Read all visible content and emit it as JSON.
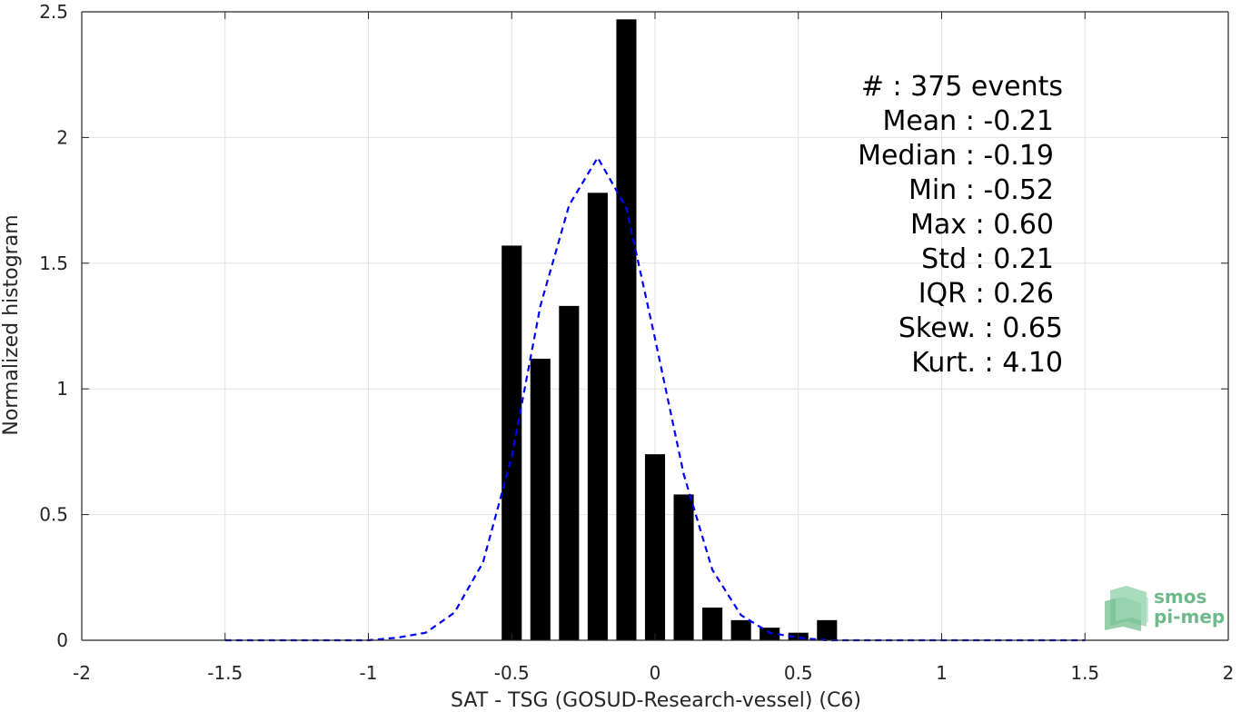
{
  "chart_data": {
    "type": "bar",
    "xlabel": "SAT - TSG (GOSUD-Research-vessel) (C6)",
    "ylabel": "Normalized histogram",
    "xlim": [
      -2,
      2
    ],
    "ylim": [
      0,
      2.5
    ],
    "xticks": [
      -2,
      -1.5,
      -1,
      -0.5,
      0,
      0.5,
      1,
      1.5,
      2
    ],
    "yticks": [
      0,
      0.5,
      1,
      1.5,
      2,
      2.5
    ],
    "xtick_labels": [
      "-2",
      "-1.5",
      "-1",
      "-0.5",
      "0",
      "0.5",
      "1",
      "1.5",
      "2"
    ],
    "ytick_labels": [
      "0",
      "0.5",
      "1",
      "1.5",
      "2",
      "2.5"
    ],
    "grid": true,
    "bar_color": "#000000",
    "bars": {
      "x": [
        -0.5,
        -0.4,
        -0.3,
        -0.2,
        -0.1,
        0.0,
        0.1,
        0.2,
        0.3,
        0.4,
        0.5,
        0.6
      ],
      "values": [
        1.57,
        1.12,
        1.33,
        1.78,
        2.47,
        0.74,
        0.58,
        0.13,
        0.08,
        0.05,
        0.03,
        0.08
      ]
    },
    "fit_curve": {
      "style": "dashed",
      "color": "#0000ff",
      "x": [
        -1.5,
        -1.4,
        -1.3,
        -1.2,
        -1.1,
        -1.0,
        -0.9,
        -0.8,
        -0.7,
        -0.6,
        -0.5,
        -0.4,
        -0.3,
        -0.2,
        -0.1,
        0.0,
        0.1,
        0.2,
        0.3,
        0.4,
        0.5,
        0.6,
        0.7,
        0.8,
        0.9,
        1.0,
        1.1,
        1.2,
        1.3,
        1.4,
        1.5
      ],
      "y": [
        0,
        0,
        0,
        0,
        0,
        0,
        0.01,
        0.03,
        0.11,
        0.31,
        0.73,
        1.33,
        1.73,
        1.92,
        1.72,
        1.2,
        0.66,
        0.28,
        0.1,
        0.03,
        0.01,
        0,
        0,
        0,
        0,
        0,
        0,
        0,
        0,
        0,
        0
      ]
    },
    "annotation": {
      "lines": [
        "#  : 375 events",
        "Mean : -0.21",
        "Median : -0.19",
        "Min : -0.52",
        "Max : 0.60",
        "Std : 0.21",
        "IQR : 0.26",
        "Skew. : 0.65",
        "Kurt. : 4.10"
      ]
    }
  },
  "logo": {
    "line1": "smos",
    "line2": "pi-mep",
    "color": "#6fba8c"
  }
}
